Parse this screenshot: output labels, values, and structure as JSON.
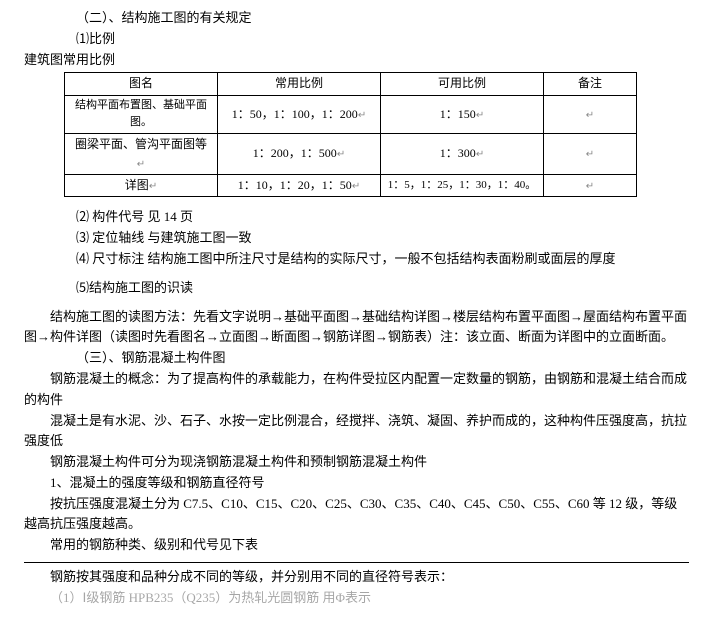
{
  "h1": "（二）、结构施工图的有关规定",
  "h2": "⑴比例",
  "h3": "建筑图常用比例",
  "table": {
    "headers": [
      "图名",
      "常用比例",
      "可用比例",
      "备注"
    ],
    "rows": [
      [
        "结构平面布置图、基础平面图。",
        "1：50，1：100，1：200",
        "1：150",
        ""
      ],
      [
        "圈梁平面、管沟平面图等",
        "1：200，1：500",
        "1：300",
        ""
      ],
      [
        "详图",
        "1：10，1：20，1：50",
        "1：5，1：25，1：30，1：40。",
        ""
      ]
    ]
  },
  "p_gjdh": "⑵ 构件代号  见 14 页",
  "p_dwzx": "⑶ 定位轴线  与建筑施工图一致",
  "p_ccbz": "⑷ 尺寸标注  结构施工图中所注尺寸是结构的实际尺寸，一般不包括结构表面粉刷或面层的厚度",
  "p_sub5": "⑸结构施工图的识读",
  "p_read": "结构施工图的读图方法：先看文字说明→基础平面图→基础结构详图→楼层结构布置平面图→屋面结构布置平面图→构件详图（读图时先看图名→立面图→断面图→钢筋详图→钢筋表）注：该立面、断面为详图中的立面断面。",
  "h_san": "（三）、钢筋混凝土构件图",
  "p_gn": "钢筋混凝土的概念：为了提高构件的承载能力，在构件受拉区内配置一定数量的钢筋，由钢筋和混凝土结合而成的构件",
  "p_hnt": "混凝土是有水泥、沙、石子、水按一定比例混合，经搅拌、浇筑、凝固、养护而成的，这种构件压强度高，抗拉强度低",
  "p_type": "钢筋混凝土构件可分为现浇钢筋混凝土构件和预制钢筋混凝土构件",
  "p_1t": "1、混凝土的强度等级和钢筋直径符号",
  "p_grade": "按抗压强度混凝土分为 C7.5、C10、C15、C20、C25、C30、C35、C40、C45、C50、C55、C60 等 12 级，等级越高抗压强度越高。",
  "p_use": "常用的钢筋种类、级别和代号见下表",
  "p_foot": "钢筋按其强度和品种分成不同的等级，并分别用不同的直径符号表示：",
  "p_cut": "（1）Ⅰ级钢筋  HPB235（Q235）为热轧光圆钢筋  用Φ表示"
}
